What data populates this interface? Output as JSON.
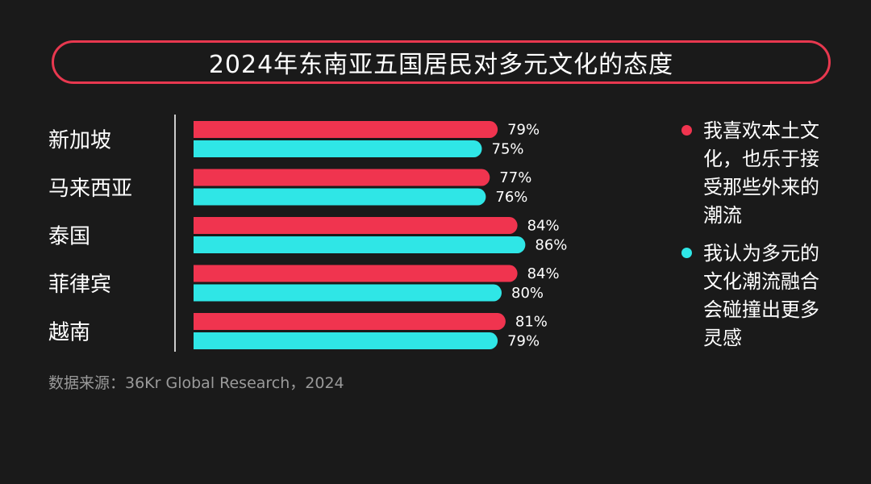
{
  "chart_data": {
    "type": "bar",
    "orientation": "horizontal",
    "title": "2024年东南亚五国居民对多元文化的态度",
    "categories": [
      "新加坡",
      "马来西亚",
      "泰国",
      "菲律宾",
      "越南"
    ],
    "series": [
      {
        "name": "我喜欢本土文化，也乐于接受那些外来的潮流",
        "color": "#f0344f",
        "values": [
          79,
          77,
          84,
          84,
          81
        ]
      },
      {
        "name": "我认为多元的文化潮流融合会碰撞出更多灵感",
        "color": "#2fe6e6",
        "values": [
          75,
          76,
          86,
          80,
          79
        ]
      }
    ],
    "value_suffix": "%",
    "xlim": [
      0,
      100
    ],
    "grid": false,
    "legend_position": "right"
  },
  "source": "数据来源：36Kr Global Research，2024",
  "colors": {
    "background": "#1a1a1a",
    "title_border": "#e8384f",
    "axis_line": "#cccccc"
  }
}
